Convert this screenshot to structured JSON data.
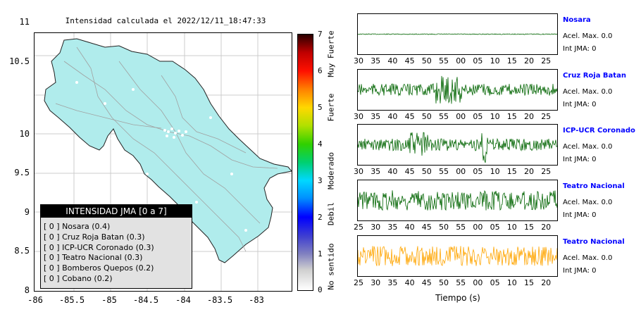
{
  "map": {
    "title": "Intensidad calculada el 2022/12/11_18:47:33",
    "y_ticks": [
      "11",
      "10.5",
      "10",
      "9.5",
      "9",
      "8.5",
      "8"
    ],
    "x_ticks": [
      "-86",
      "-85.5",
      "-85",
      "-84.5",
      "-84",
      "-83.5",
      "-83"
    ],
    "land_color": "#b0ecec",
    "road_color": "#a0a0a0"
  },
  "legend": {
    "header": "INTENSIDAD JMA [0 a 7]",
    "items": [
      "[ 0 ]  Nosara (0.4)",
      "[ 0 ]  Cruz Roja Batan (0.3)",
      "[ 0 ]  ICP-UCR Coronado (0.3)",
      "[ 0 ]  Teatro Nacional (0.3)",
      "[ 0 ]  Bomberos Quepos (0.2)",
      "[ 0 ]  Cobano (0.2)"
    ]
  },
  "colorbar": {
    "ticks": [
      "7",
      "6",
      "5",
      "4",
      "3",
      "2",
      "1",
      "0"
    ],
    "categories": [
      "Muy Fuerte",
      "Fuerte",
      "Moderado",
      "Debil",
      "No sentido"
    ]
  },
  "waveforms": {
    "xlabel": "Tiempo (s)",
    "tick_sets": {
      "a": [
        "30",
        "35",
        "40",
        "45",
        "50",
        "55",
        "00",
        "05",
        "10",
        "15",
        "20",
        "25"
      ],
      "b": [
        "25",
        "30",
        "35",
        "40",
        "45",
        "50",
        "55",
        "00",
        "05",
        "10",
        "15",
        "20"
      ]
    },
    "panels": [
      {
        "station": "Nosara",
        "accel": "Acel. Max. 0.0",
        "jma": "Int JMA: 0",
        "color": "#006400",
        "ticks": "a",
        "amplitude": 0.02
      },
      {
        "station": "Cruz Roja Batan",
        "accel": "Acel. Max. 0.0",
        "jma": "Int JMA: 0",
        "color": "#006400",
        "ticks": "a",
        "amplitude": 0.3
      },
      {
        "station": "ICP-UCR Coronado",
        "accel": "Acel. Max. 0.0",
        "jma": "Int JMA: 0",
        "color": "#006400",
        "ticks": "a",
        "amplitude": 0.3
      },
      {
        "station": "Teatro Nacional",
        "accel": "Acel. Max. 0.0",
        "jma": "Int JMA: 0",
        "color": "#006400",
        "ticks": "b",
        "amplitude": 0.5
      },
      {
        "station": "Teatro Nacional",
        "accel": "Acel. Max. 0.0",
        "jma": "Int JMA: 0",
        "color": "#ffa500",
        "ticks": "b",
        "amplitude": 0.5
      }
    ]
  }
}
